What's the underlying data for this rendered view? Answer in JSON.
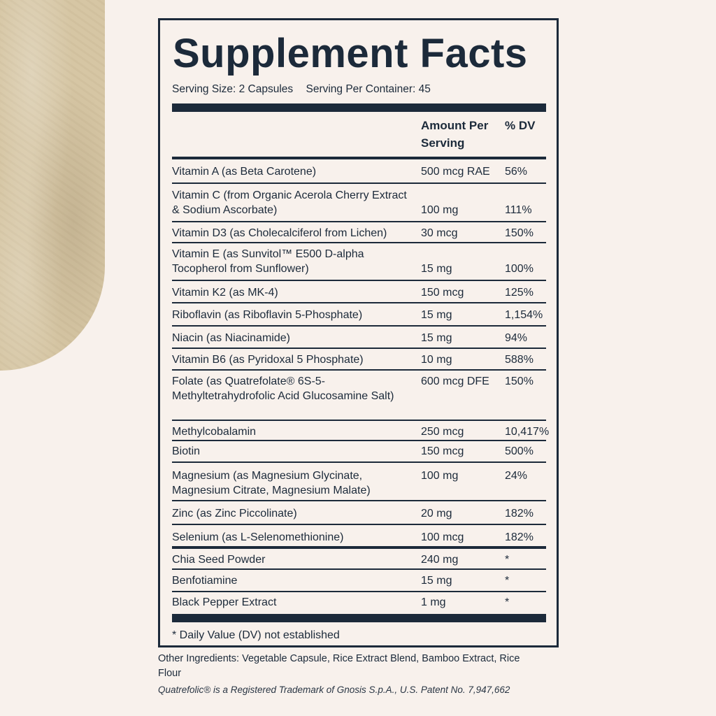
{
  "title": "Supplement Facts",
  "serving_size": "Serving Size: 2 Capsules",
  "servings_per_container": "Serving Per Container: 45",
  "headers": {
    "amount": "Amount Per Serving",
    "dv": "% DV"
  },
  "rows": [
    {
      "name": "Vitamin A (as Beta Carotene)",
      "amount": "500 mcg RAE",
      "dv": "56%"
    },
    {
      "name": "Vitamin C (from Organic Acerola Cherry Extract & Sodium Ascorbate)",
      "amount": "100 mg",
      "dv": "111%"
    },
    {
      "name": "Vitamin D3 (as Cholecalciferol from Lichen)",
      "amount": "30 mcg",
      "dv": "150%"
    },
    {
      "name": "Vitamin E (as Sunvitol™ E500 D-alpha Tocopherol from Sunflower)",
      "amount": "15 mg",
      "dv": "100%"
    },
    {
      "name": "Vitamin K2 (as MK-4)",
      "amount": "150 mcg",
      "dv": "125%"
    },
    {
      "name": "Riboflavin (as Riboflavin 5-Phosphate)",
      "amount": "15 mg",
      "dv": "1,154%"
    },
    {
      "name": "Niacin (as Niacinamide)",
      "amount": "15 mg",
      "dv": "94%"
    },
    {
      "name": "Vitamin B6 (as Pyridoxal 5 Phosphate)",
      "amount": "10 mg",
      "dv": "588%"
    },
    {
      "name": "Folate (as Quatrefolate® 6S-5-Methyltetrahydrofolic Acid Glucosamine Salt)",
      "amount": "600 mcg DFE",
      "dv": "150%"
    },
    {
      "name": "Methylcobalamin",
      "amount": "250 mcg",
      "dv": "10,417%"
    },
    {
      "name": "Biotin",
      "amount": "150 mcg",
      "dv": "500%"
    },
    {
      "name": "Magnesium (as Magnesium Glycinate, Magnesium Citrate, Magnesium Malate)",
      "amount": "100 mg",
      "dv": "24%"
    },
    {
      "name": "Zinc (as Zinc Piccolinate)",
      "amount": "20 mg",
      "dv": "182%"
    },
    {
      "name": "Selenium (as L-Selenomethionine)",
      "amount": "100 mcg",
      "dv": "182%"
    },
    {
      "name": "Chia Seed Powder",
      "amount": "240 mg",
      "dv": "*"
    },
    {
      "name": "Benfotiamine",
      "amount": "15 mg",
      "dv": "*"
    },
    {
      "name": "Black Pepper Extract",
      "amount": "1 mg",
      "dv": "*"
    }
  ],
  "footnote": "* Daily Value (DV) not established",
  "other_ingredients": "Other Ingredients: Vegetable Capsule, Rice Extract Blend, Bamboo Extract, Rice Flour",
  "trademark_note": "Quatrefolic® is a Registered Trademark of Gnosis S.p.A., U.S. Patent No. 7,947,662",
  "colors": {
    "ink": "#1c2a3a",
    "background": "#f8f1ec",
    "stone": "#d6c6a4"
  }
}
